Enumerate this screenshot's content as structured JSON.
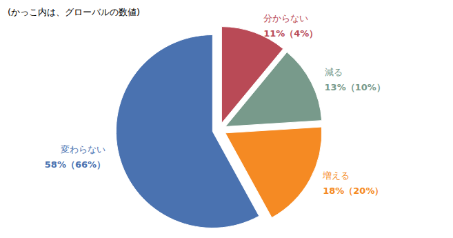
{
  "chart_data": {
    "type": "pie",
    "title": "(かっこ内は、グローバルの数値)",
    "categories": [
      "分からない",
      "減る",
      "増える",
      "変わらない"
    ],
    "values": [
      11,
      13,
      18,
      58
    ],
    "value_labels": [
      "11%（4%）",
      "13%（10%）",
      "18%（20%）",
      "58%（66%）"
    ],
    "colors": [
      "#b94a56",
      "#789a8b",
      "#f58a23",
      "#4a72b0"
    ],
    "data_labels": true
  }
}
